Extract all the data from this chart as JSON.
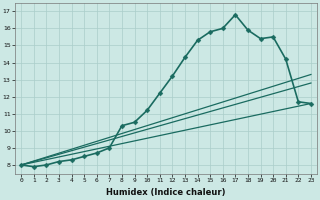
{
  "xlabel": "Humidex (Indice chaleur)",
  "background_color": "#cce8e4",
  "grid_color": "#aaceca",
  "line_color": "#1a6b60",
  "xlim": [
    -0.5,
    23.5
  ],
  "ylim": [
    7.5,
    17.5
  ],
  "xticks": [
    0,
    1,
    2,
    3,
    4,
    5,
    6,
    7,
    8,
    9,
    10,
    11,
    12,
    13,
    14,
    15,
    16,
    17,
    18,
    19,
    20,
    21,
    22,
    23
  ],
  "yticks": [
    8,
    9,
    10,
    11,
    12,
    13,
    14,
    15,
    16,
    17
  ],
  "series": [
    {
      "x": [
        0,
        1,
        2,
        3,
        4,
        5,
        6,
        7,
        8,
        9,
        10,
        11,
        12,
        13,
        14,
        15,
        16,
        17,
        18,
        19,
        20,
        21,
        22,
        23
      ],
      "y": [
        8,
        7.9,
        8.0,
        8.2,
        8.3,
        8.5,
        8.7,
        9.0,
        10.3,
        10.5,
        11.2,
        12.2,
        13.2,
        14.3,
        15.3,
        15.8,
        16.0,
        16.8,
        15.9,
        15.4,
        15.5,
        14.2,
        11.7,
        11.6
      ],
      "marker": "D",
      "markersize": 2.5,
      "linewidth": 1.2
    },
    {
      "x": [
        0,
        23
      ],
      "y": [
        8,
        11.6
      ],
      "marker": null,
      "linewidth": 0.9
    },
    {
      "x": [
        0,
        23
      ],
      "y": [
        8,
        12.8
      ],
      "marker": null,
      "linewidth": 0.9
    },
    {
      "x": [
        0,
        23
      ],
      "y": [
        8,
        13.3
      ],
      "marker": null,
      "linewidth": 0.9
    }
  ]
}
